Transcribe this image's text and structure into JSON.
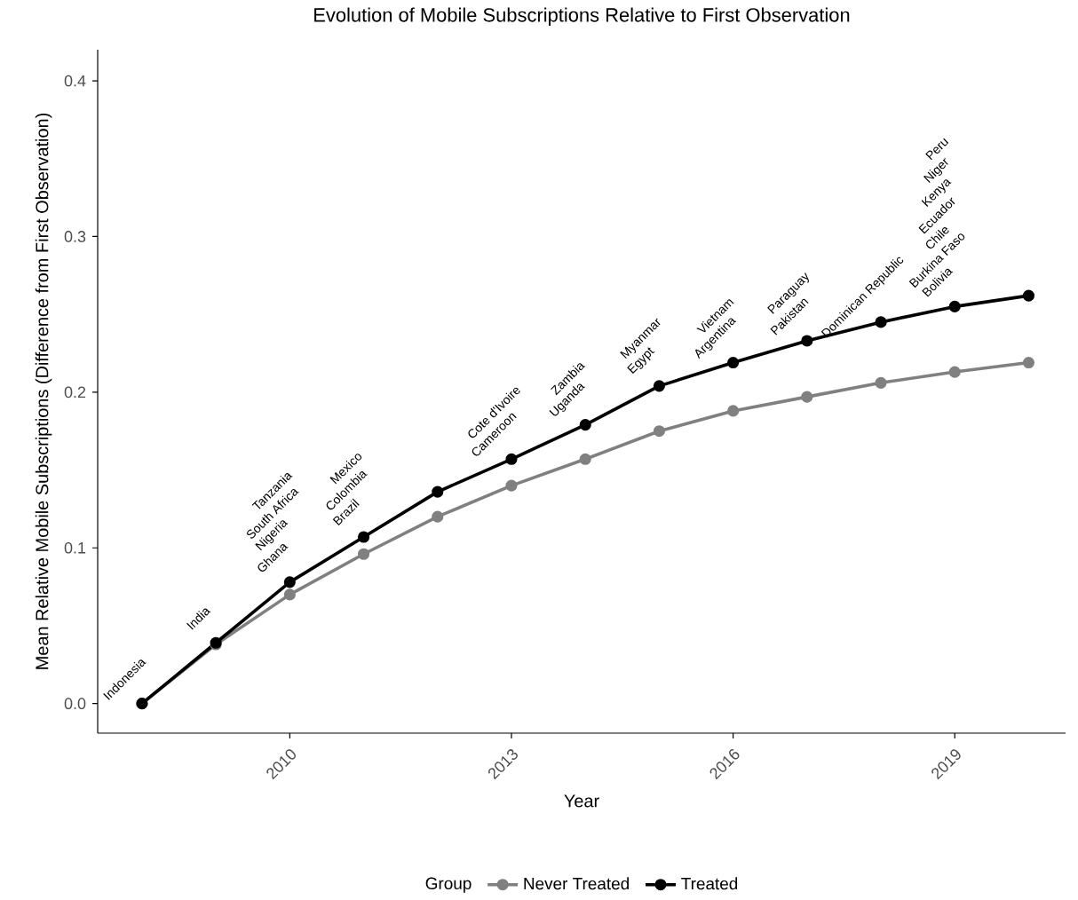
{
  "chart_data": {
    "type": "line",
    "title": "Evolution of Mobile Subscriptions Relative to First Observation",
    "xlabel": "Year",
    "ylabel": "Mean Relative Mobile Subscriptions (Difference from First Observation)",
    "legend_title": "Group",
    "x": [
      2008,
      2009,
      2010,
      2011,
      2012,
      2013,
      2014,
      2015,
      2016,
      2017,
      2018,
      2019,
      2020
    ],
    "series": [
      {
        "name": "Never Treated",
        "color": "#808080",
        "values": [
          0,
          0.038,
          0.07,
          0.096,
          0.12,
          0.14,
          0.157,
          0.175,
          0.188,
          0.197,
          0.206,
          0.213,
          0.219
        ]
      },
      {
        "name": "Treated",
        "color": "#000000",
        "values": [
          0,
          0.039,
          0.078,
          0.107,
          0.136,
          0.157,
          0.179,
          0.204,
          0.219,
          0.233,
          0.245,
          0.255,
          0.262
        ]
      }
    ],
    "xlim": [
      2007.4,
      2020.5
    ],
    "xticks": [
      2010,
      2013,
      2016,
      2019
    ],
    "ylim": [
      -0.019,
      0.42
    ],
    "yticks": [
      {
        "value": 0,
        "label": "0.0"
      },
      0.1,
      0.2,
      0.3,
      0.4
    ],
    "grid": false,
    "legend": "bottom",
    "marker": "circle",
    "line_style": "solid",
    "annotations": [
      {
        "text": "Indonesia",
        "x": 2008,
        "y": 0
      },
      {
        "text": "India",
        "x": 2009,
        "y": 0.039
      },
      {
        "text": "Ghana",
        "x": 2010,
        "y": 0.078
      },
      {
        "text": "Nigeria",
        "x": 2010,
        "y": 0.078
      },
      "South Africa",
      "Tanzania",
      {
        "text": "Brazil",
        "x": 2011,
        "y": 0.107
      },
      {
        "text": "Colombia",
        "x": 2011,
        "y": 0.107
      },
      "Mexico",
      {
        "text": "Cameroon",
        "x": 2013,
        "y": 0.157
      },
      {
        "text": "Cote d'Ivoire",
        "x": 2013,
        "y": 0.157
      },
      {
        "text": "Uganda",
        "x": 2014,
        "y": 0.179
      },
      {
        "text": "Zambia",
        "x": 2014,
        "y": 0.179
      },
      {
        "text": "Egypt",
        "x": 2015,
        "y": 0.204
      },
      {
        "text": "Myanmar",
        "x": 2015,
        "y": 0.204
      },
      {
        "text": "Argentina",
        "x": 2016,
        "y": 0.219
      },
      {
        "text": "Vietnam",
        "x": 2016,
        "y": 0.219
      },
      {
        "text": "Pakistan",
        "x": 2017,
        "y": 0.233
      },
      {
        "text": "Paraguay",
        "x": 2017,
        "y": 0.233
      },
      {
        "text": "Dominican Republic",
        "x": 2018,
        "y": 0.245
      },
      {
        "text": "Bolivia",
        "x": 2019,
        "y": 0.255
      },
      {
        "text": "Burkina Faso",
        "x": 2019,
        "y": 0.255
      },
      "Chile",
      "Ecuador",
      "Kenya",
      "Niger",
      "Peru"
    ]
  }
}
